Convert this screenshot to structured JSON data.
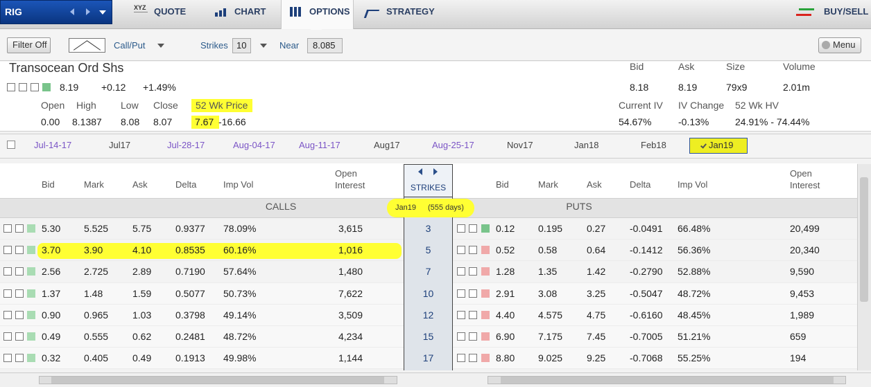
{
  "nav": {
    "symbol": "RIG",
    "quote_icon": "XYZ",
    "tabs": [
      "QUOTE",
      "CHART",
      "OPTIONS",
      "STRATEGY"
    ],
    "buy_sell": "BUY/SELL"
  },
  "toolbar": {
    "filter": "Filter Off",
    "call_put": "Call/Put",
    "strikes_label": "Strikes",
    "strikes_value": "10",
    "near_label": "Near",
    "near_value": "8.085",
    "menu": "Menu"
  },
  "quote": {
    "name": "Transocean Ord Shs",
    "last": "8.19",
    "change": "+0.12",
    "change_pct": "+1.49%",
    "stats_labels": [
      "Open",
      "High",
      "Low",
      "Close",
      "52 Wk Price"
    ],
    "stats_values": [
      "0.00",
      "8.1387",
      "8.08",
      "8.07"
    ],
    "range_low": "7.67",
    "range_high": "-16.66",
    "market_labels": [
      "Bid",
      "Ask",
      "Size",
      "Volume"
    ],
    "market_values": [
      "8.18",
      "8.19",
      "79x9",
      "2.01m"
    ],
    "vol_labels": [
      "Current IV",
      "IV Change",
      "52 Wk HV"
    ],
    "vol_values": [
      "54.67%",
      "-0.13%",
      "24.91% - 74.44%"
    ]
  },
  "expirations": [
    "Jul-14-17",
    "Jul17",
    "Jul-28-17",
    "Aug-04-17",
    "Aug-11-17",
    "Aug17",
    "Aug-25-17",
    "Nov17",
    "Jan18",
    "Feb18",
    "Jan19"
  ],
  "chain": {
    "call_headers": [
      "Bid",
      "Mark",
      "Ask",
      "Delta",
      "Imp Vol",
      "Open Interest"
    ],
    "put_headers": [
      "Bid",
      "Mark",
      "Ask",
      "Delta",
      "Imp Vol",
      "Open Interest"
    ],
    "strikes_header": "STRIKES",
    "calls_label": "CALLS",
    "puts_label": "PUTS",
    "expiry": "Jan19",
    "days": "(555 days)",
    "rows": [
      {
        "strike": "3",
        "call_color": "#a9dcb3",
        "put_color": "#79c48b",
        "call": [
          "5.30",
          "5.525",
          "5.75",
          "0.9377",
          "78.09%",
          "3,615"
        ],
        "put": [
          "0.12",
          "0.195",
          "0.27",
          "-0.0491",
          "66.48%",
          "20,499"
        ]
      },
      {
        "strike": "5",
        "call_color": "#a9dcb3",
        "put_color": "#f0a9a9",
        "call": [
          "3.70",
          "3.90",
          "4.10",
          "0.8535",
          "60.16%",
          "1,016"
        ],
        "put": [
          "0.52",
          "0.58",
          "0.64",
          "-0.1412",
          "56.36%",
          "20,340"
        ]
      },
      {
        "strike": "7",
        "call_color": "#a9dcb3",
        "put_color": "#f0a9a9",
        "call": [
          "2.56",
          "2.725",
          "2.89",
          "0.7190",
          "57.64%",
          "1,480"
        ],
        "put": [
          "1.28",
          "1.35",
          "1.42",
          "-0.2790",
          "52.88%",
          "9,590"
        ]
      },
      {
        "strike": "10",
        "call_color": "#a9dcb3",
        "put_color": "#f0a9a9",
        "call": [
          "1.37",
          "1.48",
          "1.59",
          "0.5077",
          "50.73%",
          "7,622"
        ],
        "put": [
          "2.91",
          "3.08",
          "3.25",
          "-0.5047",
          "48.72%",
          "9,453"
        ]
      },
      {
        "strike": "12",
        "call_color": "#a9dcb3",
        "put_color": "#f0a9a9",
        "call": [
          "0.90",
          "0.965",
          "1.03",
          "0.3798",
          "49.14%",
          "3,509"
        ],
        "put": [
          "4.40",
          "4.575",
          "4.75",
          "-0.6160",
          "48.45%",
          "1,989"
        ]
      },
      {
        "strike": "15",
        "call_color": "#a9dcb3",
        "put_color": "#f0a9a9",
        "call": [
          "0.49",
          "0.555",
          "0.62",
          "0.2481",
          "48.72%",
          "4,234"
        ],
        "put": [
          "6.90",
          "7.175",
          "7.45",
          "-0.7005",
          "51.21%",
          "659"
        ]
      },
      {
        "strike": "17",
        "call_color": "#a9dcb3",
        "put_color": "#f0a9a9",
        "call": [
          "0.32",
          "0.405",
          "0.49",
          "0.1913",
          "49.98%",
          "1,144"
        ],
        "put": [
          "8.80",
          "9.025",
          "9.25",
          "-0.7068",
          "55.25%",
          "194"
        ]
      }
    ]
  }
}
